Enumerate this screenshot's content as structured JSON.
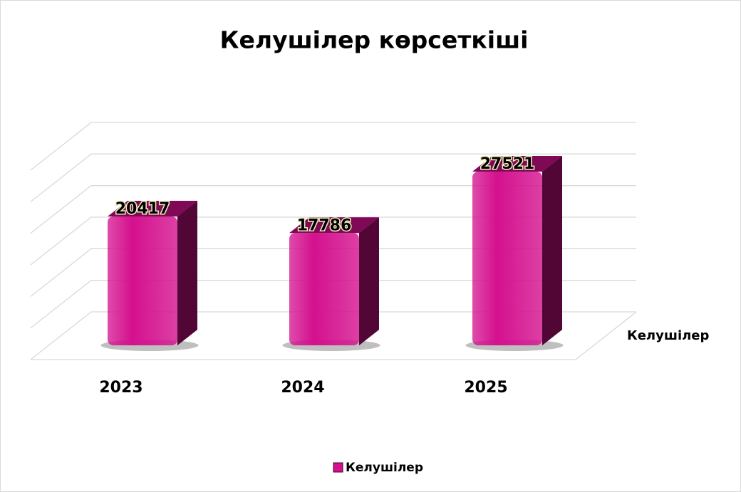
{
  "chart_data": {
    "type": "bar3d",
    "title": "Келушілер көрсеткіші",
    "categories": [
      "2023",
      "2024",
      "2025"
    ],
    "series": [
      {
        "name": "Келушілер",
        "color": "#d4108e",
        "values": [
          20417,
          17786,
          27521
        ]
      }
    ],
    "ylim": [
      0,
      30000
    ],
    "yticks": [
      0,
      5000,
      10000,
      15000,
      20000,
      25000,
      30000
    ],
    "grid": true,
    "legend": "bottom"
  }
}
